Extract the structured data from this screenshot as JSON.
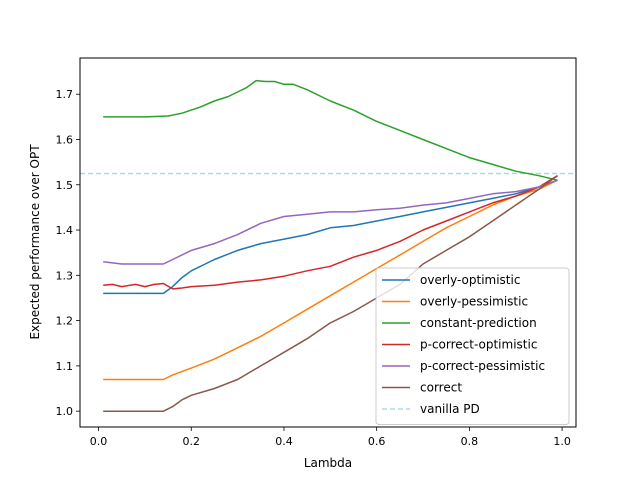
{
  "chart_data": {
    "type": "line",
    "xlabel": "Lambda",
    "ylabel": "Expected performance over OPT",
    "xlim": [
      -0.04,
      1.03
    ],
    "ylim": [
      0.965,
      1.78
    ],
    "xticks": [
      0.0,
      0.2,
      0.4,
      0.6,
      0.8,
      1.0
    ],
    "xtick_labels": [
      "0.0",
      "0.2",
      "0.4",
      "0.6",
      "0.8",
      "1.0"
    ],
    "yticks": [
      1.0,
      1.1,
      1.2,
      1.3,
      1.4,
      1.5,
      1.6,
      1.7
    ],
    "ytick_labels": [
      "1.0",
      "1.1",
      "1.2",
      "1.3",
      "1.4",
      "1.5",
      "1.6",
      "1.7"
    ],
    "grid": false,
    "legend_position": "lower right",
    "series": [
      {
        "name": "overly-optimistic",
        "color": "#1f77b4",
        "x": [
          0.01,
          0.05,
          0.1,
          0.14,
          0.16,
          0.18,
          0.2,
          0.25,
          0.3,
          0.35,
          0.4,
          0.45,
          0.5,
          0.55,
          0.6,
          0.65,
          0.7,
          0.75,
          0.8,
          0.85,
          0.9,
          0.95,
          0.99
        ],
        "y": [
          1.26,
          1.26,
          1.26,
          1.26,
          1.275,
          1.295,
          1.31,
          1.335,
          1.355,
          1.37,
          1.38,
          1.39,
          1.405,
          1.41,
          1.42,
          1.43,
          1.44,
          1.45,
          1.46,
          1.47,
          1.48,
          1.495,
          1.51
        ]
      },
      {
        "name": "overly-pessimistic",
        "color": "#ff7f0e",
        "x": [
          0.01,
          0.05,
          0.1,
          0.14,
          0.16,
          0.2,
          0.25,
          0.3,
          0.35,
          0.4,
          0.45,
          0.5,
          0.55,
          0.6,
          0.65,
          0.7,
          0.75,
          0.8,
          0.85,
          0.9,
          0.95,
          0.99
        ],
        "y": [
          1.07,
          1.07,
          1.07,
          1.07,
          1.08,
          1.095,
          1.115,
          1.14,
          1.165,
          1.195,
          1.225,
          1.255,
          1.285,
          1.315,
          1.345,
          1.375,
          1.405,
          1.43,
          1.455,
          1.475,
          1.49,
          1.51
        ]
      },
      {
        "name": "constant-prediction",
        "color": "#2ca02c",
        "x": [
          0.01,
          0.05,
          0.1,
          0.15,
          0.18,
          0.2,
          0.22,
          0.25,
          0.28,
          0.3,
          0.32,
          0.34,
          0.36,
          0.38,
          0.4,
          0.42,
          0.45,
          0.5,
          0.55,
          0.6,
          0.65,
          0.7,
          0.75,
          0.8,
          0.85,
          0.9,
          0.95,
          0.99
        ],
        "y": [
          1.65,
          1.65,
          1.65,
          1.652,
          1.658,
          1.665,
          1.672,
          1.685,
          1.695,
          1.705,
          1.715,
          1.73,
          1.728,
          1.728,
          1.722,
          1.722,
          1.71,
          1.685,
          1.665,
          1.64,
          1.62,
          1.6,
          1.58,
          1.56,
          1.545,
          1.53,
          1.52,
          1.51
        ]
      },
      {
        "name": "p-correct-optimistic",
        "color": "#d62728",
        "x": [
          0.01,
          0.03,
          0.05,
          0.08,
          0.1,
          0.12,
          0.14,
          0.16,
          0.18,
          0.2,
          0.25,
          0.3,
          0.35,
          0.4,
          0.45,
          0.5,
          0.55,
          0.6,
          0.65,
          0.7,
          0.75,
          0.8,
          0.85,
          0.9,
          0.95,
          0.99
        ],
        "y": [
          1.278,
          1.28,
          1.275,
          1.28,
          1.275,
          1.28,
          1.282,
          1.27,
          1.272,
          1.275,
          1.278,
          1.285,
          1.29,
          1.298,
          1.31,
          1.32,
          1.34,
          1.355,
          1.375,
          1.4,
          1.42,
          1.44,
          1.46,
          1.475,
          1.495,
          1.52
        ]
      },
      {
        "name": "p-correct-pessimistic",
        "color": "#9467bd",
        "x": [
          0.01,
          0.05,
          0.1,
          0.14,
          0.16,
          0.2,
          0.25,
          0.3,
          0.35,
          0.4,
          0.45,
          0.5,
          0.55,
          0.6,
          0.65,
          0.7,
          0.75,
          0.8,
          0.85,
          0.9,
          0.95,
          0.99
        ],
        "y": [
          1.33,
          1.325,
          1.325,
          1.325,
          1.335,
          1.355,
          1.37,
          1.39,
          1.415,
          1.43,
          1.435,
          1.44,
          1.44,
          1.445,
          1.448,
          1.455,
          1.46,
          1.47,
          1.48,
          1.485,
          1.495,
          1.51
        ]
      },
      {
        "name": "correct",
        "color": "#8c564b",
        "x": [
          0.01,
          0.05,
          0.1,
          0.14,
          0.16,
          0.18,
          0.2,
          0.25,
          0.3,
          0.35,
          0.4,
          0.45,
          0.5,
          0.55,
          0.6,
          0.65,
          0.7,
          0.75,
          0.8,
          0.85,
          0.9,
          0.95,
          0.99
        ],
        "y": [
          1.0,
          1.0,
          1.0,
          1.0,
          1.01,
          1.025,
          1.035,
          1.05,
          1.07,
          1.1,
          1.13,
          1.16,
          1.195,
          1.22,
          1.25,
          1.28,
          1.325,
          1.355,
          1.385,
          1.42,
          1.455,
          1.49,
          1.52
        ]
      }
    ],
    "reference_line": {
      "name": "vanilla PD",
      "y": 1.525,
      "color": "#add8e6",
      "style": "dashed"
    }
  }
}
